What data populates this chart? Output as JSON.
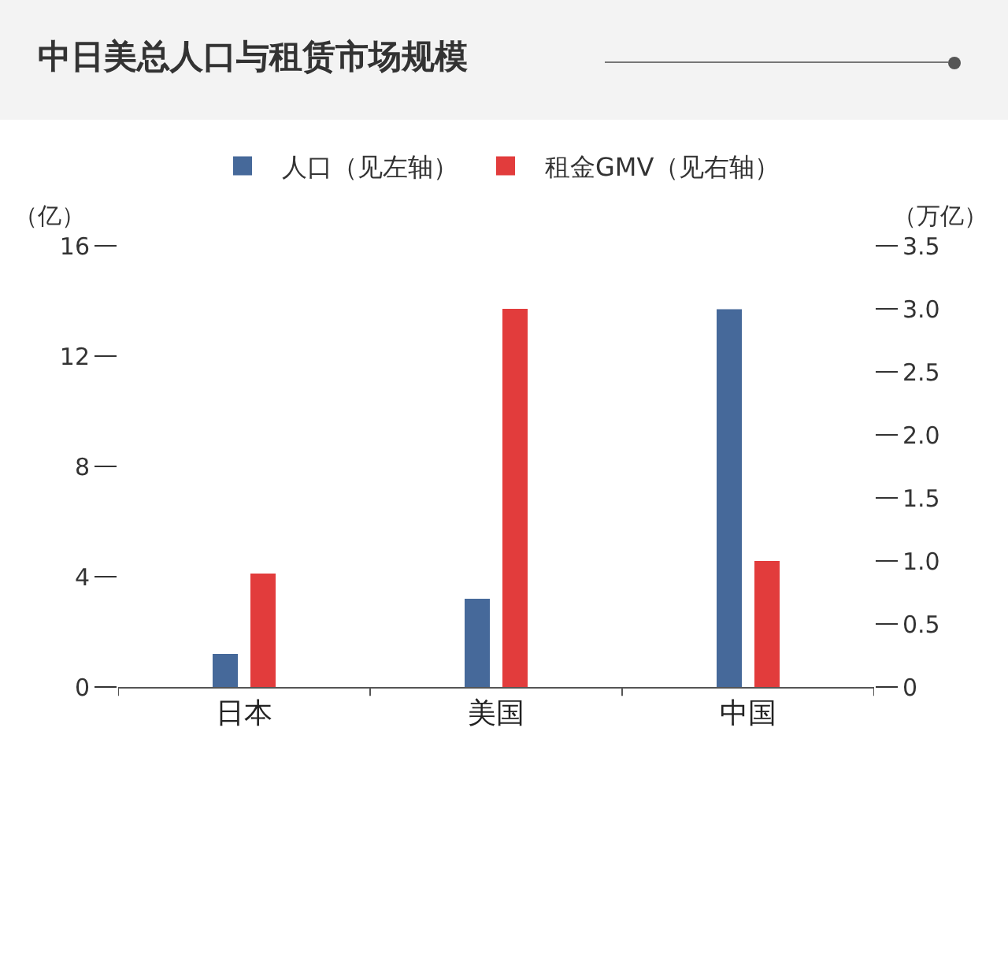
{
  "chart_data": {
    "type": "bar",
    "title": "中日美总人口与租赁市场规模",
    "ylabel": "（亿）",
    "y2label": "（万亿）",
    "categories": [
      "日本",
      "美国",
      "中国"
    ],
    "series": [
      {
        "name": "人口（见左轴）",
        "color": "#46699a",
        "values": [
          1.2,
          3.2,
          13.7
        ]
      },
      {
        "name": "租金GMV（见右轴）",
        "color": "#e23c3c",
        "values": [
          0.9,
          3.0,
          1.0
        ],
        "axis": "y2"
      }
    ],
    "ylim": [
      0,
      16
    ],
    "yticks": [
      0,
      4,
      8,
      12,
      16
    ],
    "y2lim": [
      0,
      3.5
    ],
    "y2ticks": [
      0,
      {
        "value": 0.5,
        "label": "0.5"
      },
      {
        "value": 1,
        "label": "1.0"
      },
      {
        "value": 1.5,
        "label": "1.5"
      },
      {
        "value": 2,
        "label": "2.0"
      },
      {
        "value": 2.5,
        "label": "2.5"
      },
      {
        "value": 3,
        "label": "3.0"
      },
      {
        "value": 3.5,
        "label": "3.5"
      }
    ],
    "legend": "top",
    "grid": false
  }
}
